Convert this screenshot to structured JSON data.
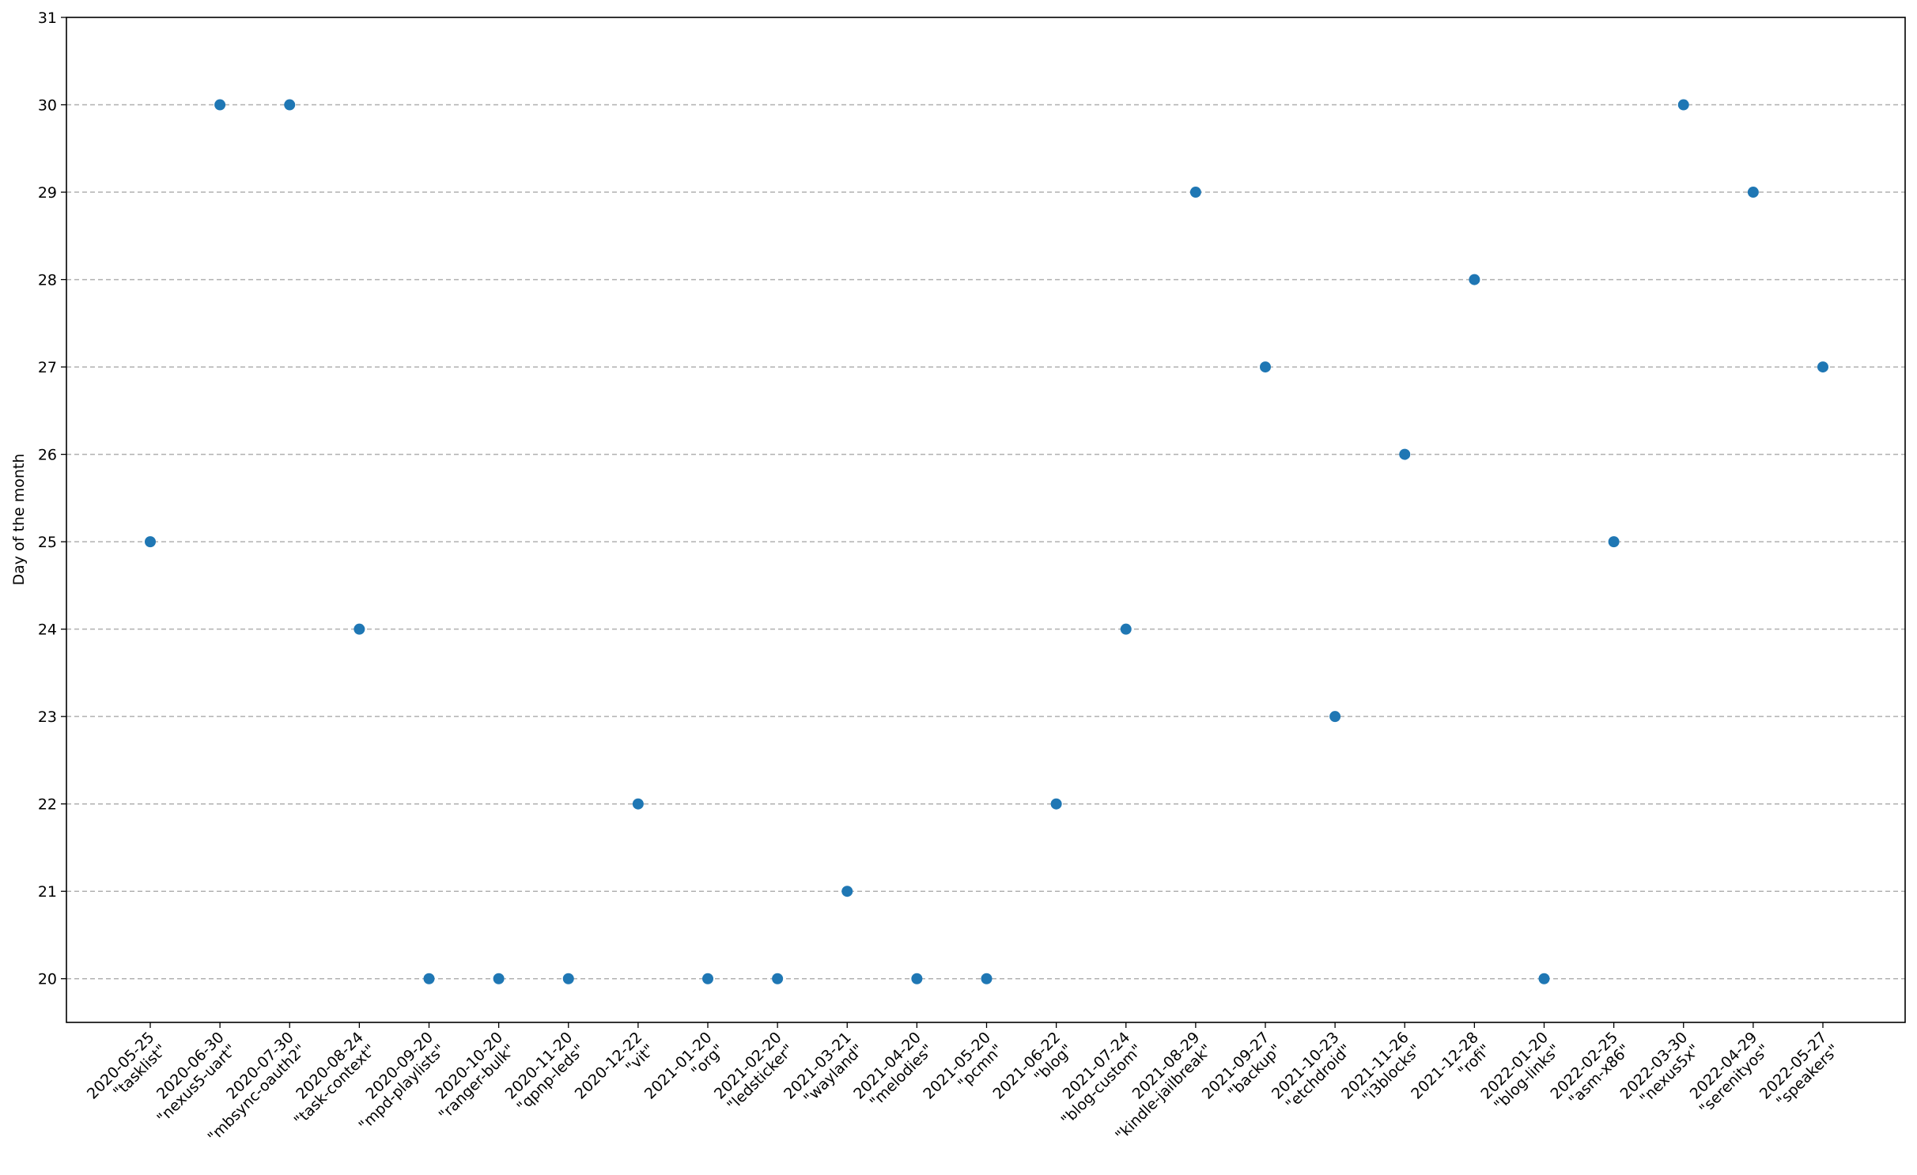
{
  "chart_data": {
    "type": "scatter",
    "title": "",
    "xlabel": "",
    "ylabel": "Day of the month",
    "ylim": [
      19.5,
      31
    ],
    "yticks": [
      20,
      21,
      22,
      23,
      24,
      25,
      26,
      27,
      28,
      29,
      30,
      31
    ],
    "grid": "horizontal dashed",
    "colors": {
      "point": "#1f77b4",
      "grid": "#b0b0b0"
    },
    "categories": [
      {
        "date": "2020-05-25",
        "name": "\"tasklist\""
      },
      {
        "date": "2020-06-30",
        "name": "\"nexus5-uart\""
      },
      {
        "date": "2020-07-30",
        "name": "\"mbsync-oauth2\""
      },
      {
        "date": "2020-08-24",
        "name": "\"task-context\""
      },
      {
        "date": "2020-09-20",
        "name": "\"mpd-playlists\""
      },
      {
        "date": "2020-10-20",
        "name": "\"ranger-bulk\""
      },
      {
        "date": "2020-11-20",
        "name": "\"qpnp-leds\""
      },
      {
        "date": "2020-12-22",
        "name": "\"vit\""
      },
      {
        "date": "2021-01-20",
        "name": "\"org\""
      },
      {
        "date": "2021-02-20",
        "name": "\"ledsticker\""
      },
      {
        "date": "2021-03-21",
        "name": "\"wayland\""
      },
      {
        "date": "2021-04-20",
        "name": "\"melodies\""
      },
      {
        "date": "2021-05-20",
        "name": "\"pcmn\""
      },
      {
        "date": "2021-06-22",
        "name": "\"blog\""
      },
      {
        "date": "2021-07-24",
        "name": "\"blog-custom\""
      },
      {
        "date": "2021-08-29",
        "name": "\"kindle-jailbreak\""
      },
      {
        "date": "2021-09-27",
        "name": "\"backup\""
      },
      {
        "date": "2021-10-23",
        "name": "\"etchdroid\""
      },
      {
        "date": "2021-11-26",
        "name": "\"i3blocks\""
      },
      {
        "date": "2021-12-28",
        "name": "\"rofi\""
      },
      {
        "date": "2022-01-20",
        "name": "\"blog-links\""
      },
      {
        "date": "2022-02-25",
        "name": "\"asm-x86\""
      },
      {
        "date": "2022-03-30",
        "name": "\"nexus5x\""
      },
      {
        "date": "2022-04-29",
        "name": "\"serenityos\""
      },
      {
        "date": "2022-05-27",
        "name": "\"speakers\""
      }
    ],
    "values": [
      25,
      30,
      30,
      24,
      20,
      20,
      20,
      22,
      20,
      20,
      21,
      20,
      20,
      22,
      24,
      29,
      27,
      23,
      26,
      28,
      20,
      25,
      30,
      29,
      27
    ]
  }
}
